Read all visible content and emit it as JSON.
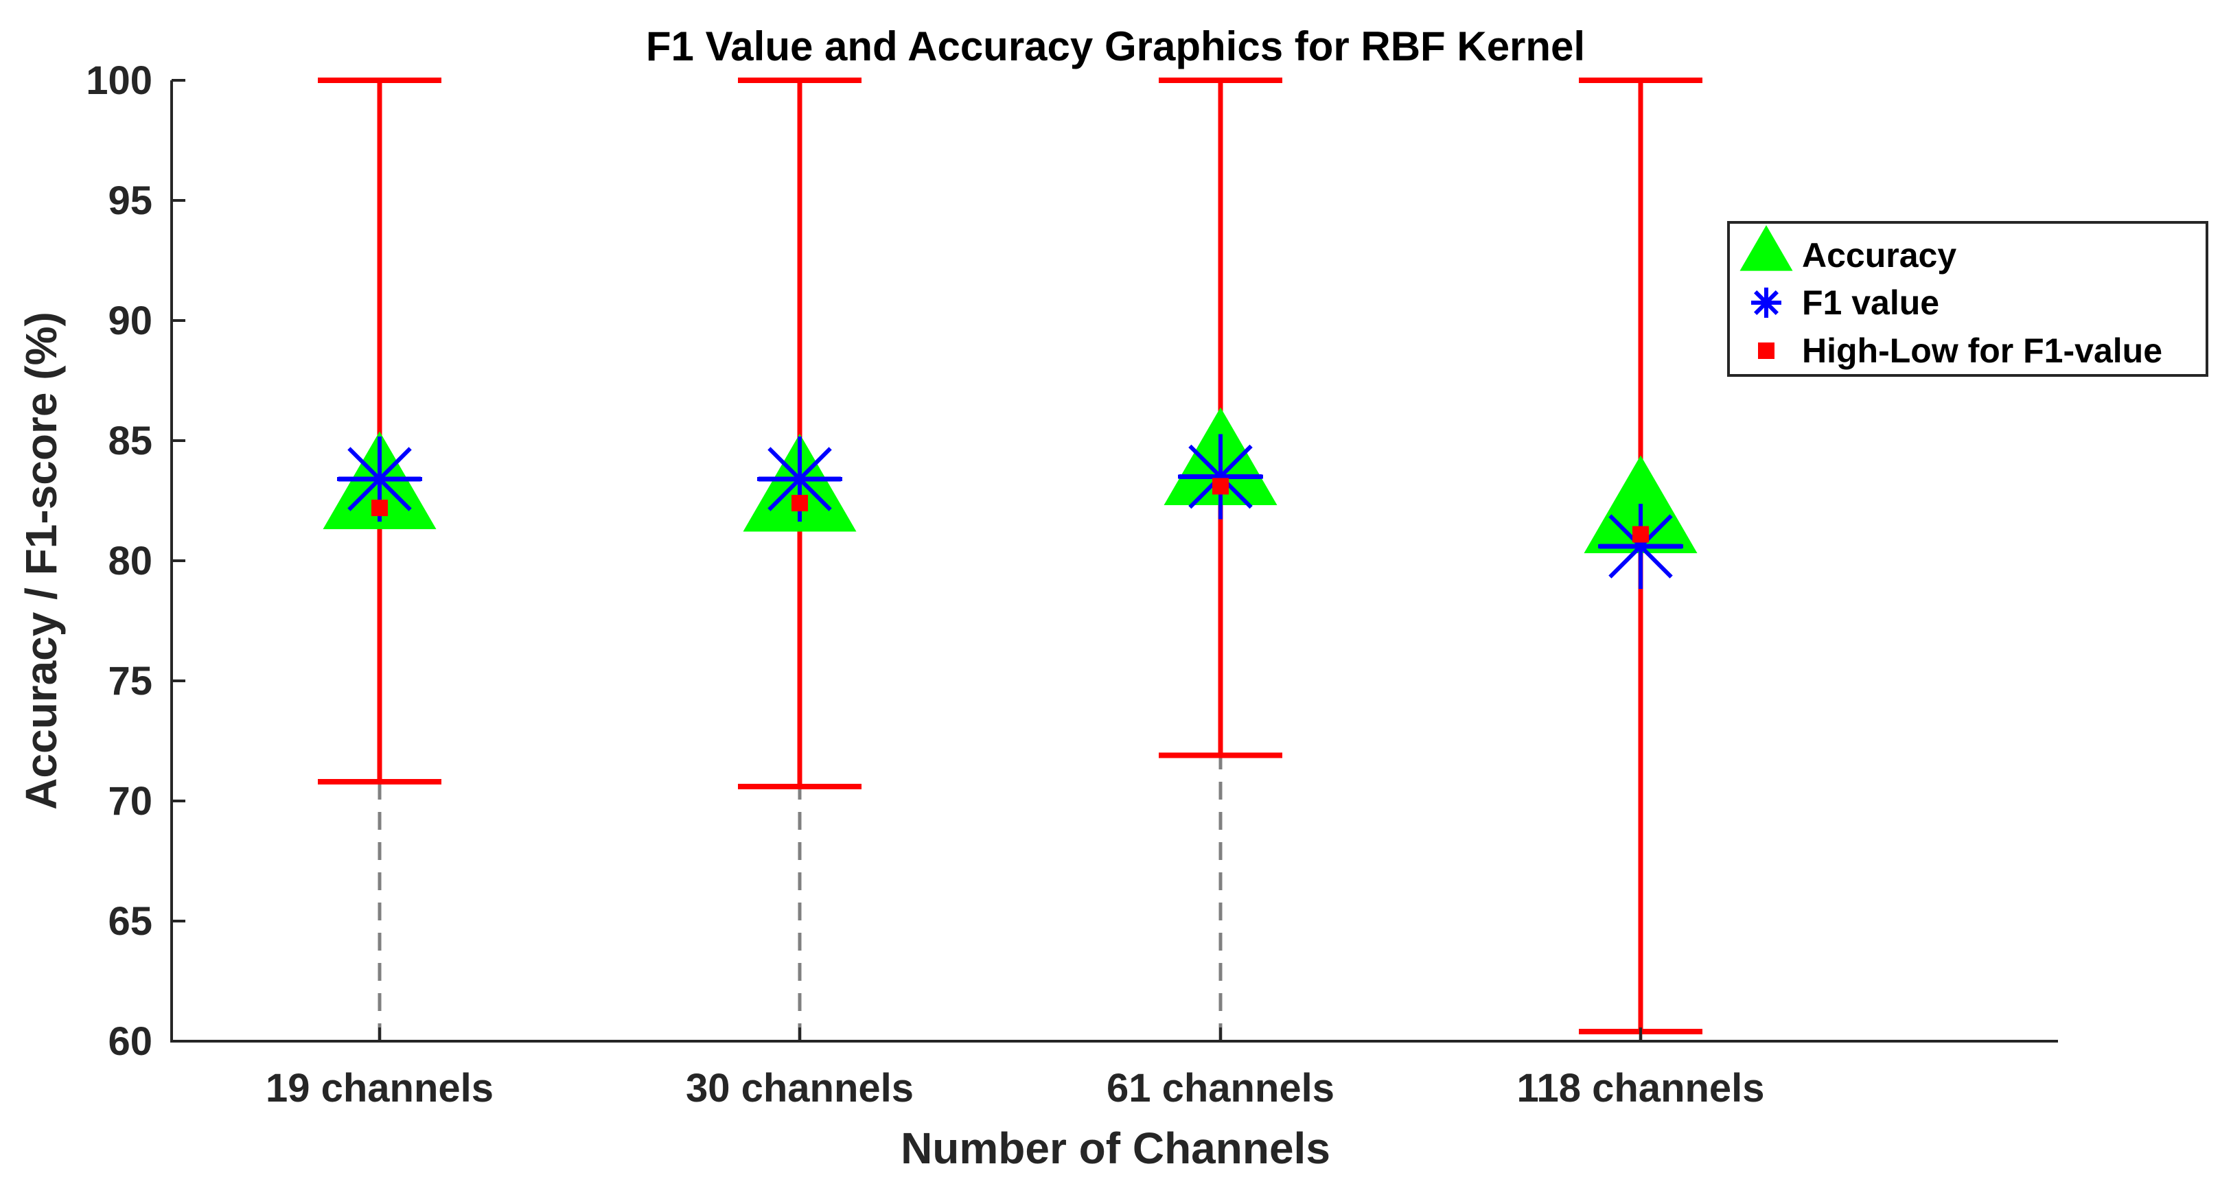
{
  "chart_data": {
    "type": "scatter",
    "title": "F1 Value and Accuracy Graphics for RBF Kernel",
    "xlabel": "Number of Channels",
    "ylabel": "Accuracy / F1-score (%)",
    "categories": [
      "19 channels",
      "30 channels",
      "61 channels",
      "118 channels"
    ],
    "ylim": [
      60,
      100
    ],
    "yticks": [
      "60",
      "65",
      "70",
      "75",
      "80",
      "85",
      "90",
      "95",
      "100"
    ],
    "legend_position": "right, upper",
    "grid": false,
    "series": [
      {
        "name": "Accuracy",
        "marker": "triangle",
        "color": "#00ff00",
        "values": [
          82.7,
          82.6,
          83.7,
          81.7
        ]
      },
      {
        "name": "F1 value",
        "marker": "asterisk",
        "color": "#0000ff",
        "values": [
          83.4,
          83.4,
          83.5,
          80.6
        ]
      },
      {
        "name": "High-Low for F1-value",
        "marker": "square",
        "color": "#ff0000",
        "values": [
          82.2,
          82.4,
          83.1,
          81.1
        ],
        "high": [
          100,
          100,
          100,
          100
        ],
        "low": [
          70.8,
          70.6,
          71.9,
          60.4
        ]
      }
    ],
    "dashed_guide_color": "#808080",
    "axis_color": "#262626"
  }
}
